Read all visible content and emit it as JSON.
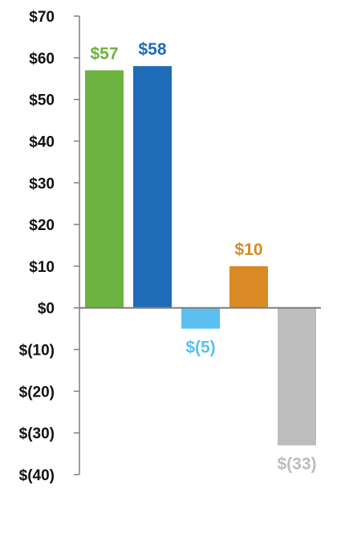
{
  "chart_data": {
    "type": "bar",
    "title": "",
    "xlabel": "",
    "ylabel": "",
    "ylim": [
      -40,
      70
    ],
    "yticks": [
      70,
      60,
      50,
      40,
      30,
      20,
      10,
      0,
      -10,
      -20,
      -30,
      -40
    ],
    "ytick_labels": [
      "$70",
      "$60",
      "$50",
      "$40",
      "$30",
      "$20",
      "$10",
      "$0",
      "$(10)",
      "$(20)",
      "$(30)",
      "$(40)"
    ],
    "grid": false,
    "legend": "none",
    "bars": [
      {
        "value": 57,
        "label": "$57",
        "color": "#6cb33f",
        "label_color": "#6cb33f"
      },
      {
        "value": 58,
        "label": "$58",
        "color": "#1e6bb8",
        "label_color": "#1e6bb8"
      },
      {
        "value": -5,
        "label": "$(5)",
        "color": "#5bc0f0",
        "label_color": "#5bc0f0"
      },
      {
        "value": 10,
        "label": "$10",
        "color": "#d98a25",
        "label_color": "#d98a25"
      },
      {
        "value": -33,
        "label": "$(33)",
        "color": "#bdbdbd",
        "label_color": "#bdbdbd"
      }
    ]
  }
}
